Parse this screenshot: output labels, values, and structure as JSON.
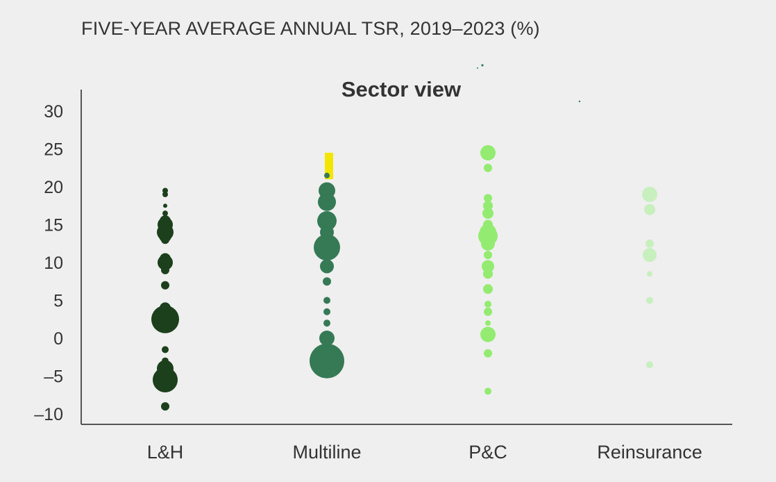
{
  "header": {
    "supertitle": "FIVE-YEAR AVERAGE ANNUAL TSR, 2019–2023 (%)"
  },
  "chart_data": {
    "type": "scatter",
    "title": "Sector view",
    "xlabel": "",
    "ylabel": "",
    "ylim": [
      -11,
      32
    ],
    "yticks": [
      30,
      25,
      20,
      15,
      10,
      5,
      0,
      -5,
      -10
    ],
    "ytick_labels": [
      "30",
      "25",
      "20",
      "15",
      "10",
      "5",
      "0",
      "–5",
      "–10"
    ],
    "categories": [
      "L&H",
      "Multiline",
      "P&C",
      "Reinsurance"
    ],
    "grid": false,
    "legend": "none",
    "highlight": {
      "category": "Multiline",
      "y_range": [
        21,
        24.5
      ],
      "color": "#f2e600"
    },
    "series": [
      {
        "category": "L&H",
        "color": "#1c3f1c",
        "points": [
          {
            "y": 19.5,
            "s": 4
          },
          {
            "y": 19.0,
            "s": 4
          },
          {
            "y": 17.5,
            "s": 3
          },
          {
            "y": 16.5,
            "s": 4
          },
          {
            "y": 15.5,
            "s": 8
          },
          {
            "y": 15.0,
            "s": 11
          },
          {
            "y": 14.0,
            "s": 12
          },
          {
            "y": 13.5,
            "s": 9
          },
          {
            "y": 13.0,
            "s": 6
          },
          {
            "y": 10.5,
            "s": 8
          },
          {
            "y": 10.0,
            "s": 11
          },
          {
            "y": 9.0,
            "s": 6
          },
          {
            "y": 7.0,
            "s": 6
          },
          {
            "y": 4.0,
            "s": 8
          },
          {
            "y": 2.5,
            "s": 20
          },
          {
            "y": -1.5,
            "s": 5
          },
          {
            "y": -3.0,
            "s": 5
          },
          {
            "y": -4.0,
            "s": 12
          },
          {
            "y": -5.5,
            "s": 18
          },
          {
            "y": -9.0,
            "s": 6
          }
        ]
      },
      {
        "category": "Multiline",
        "color": "#357a55",
        "points": [
          {
            "y": 21.5,
            "s": 4
          },
          {
            "y": 19.5,
            "s": 12
          },
          {
            "y": 18.0,
            "s": 13
          },
          {
            "y": 15.5,
            "s": 14
          },
          {
            "y": 14.0,
            "s": 10
          },
          {
            "y": 12.0,
            "s": 19
          },
          {
            "y": 9.5,
            "s": 10
          },
          {
            "y": 7.5,
            "s": 6
          },
          {
            "y": 5.0,
            "s": 5
          },
          {
            "y": 3.5,
            "s": 5
          },
          {
            "y": 2.0,
            "s": 5
          },
          {
            "y": 0.0,
            "s": 11
          },
          {
            "y": -3.0,
            "s": 25
          }
        ]
      },
      {
        "category": "P&C",
        "color": "#94eb71",
        "points": [
          {
            "y": 24.5,
            "s": 11
          },
          {
            "y": 22.5,
            "s": 6
          },
          {
            "y": 18.5,
            "s": 6
          },
          {
            "y": 17.5,
            "s": 7
          },
          {
            "y": 16.5,
            "s": 8
          },
          {
            "y": 15.0,
            "s": 7
          },
          {
            "y": 14.0,
            "s": 12
          },
          {
            "y": 13.5,
            "s": 14
          },
          {
            "y": 12.5,
            "s": 10
          },
          {
            "y": 11.0,
            "s": 6
          },
          {
            "y": 9.5,
            "s": 9
          },
          {
            "y": 8.5,
            "s": 7
          },
          {
            "y": 6.5,
            "s": 7
          },
          {
            "y": 4.5,
            "s": 5
          },
          {
            "y": 3.5,
            "s": 6
          },
          {
            "y": 2.0,
            "s": 4
          },
          {
            "y": 0.5,
            "s": 11
          },
          {
            "y": -2.0,
            "s": 6
          },
          {
            "y": -7.0,
            "s": 5
          }
        ]
      },
      {
        "category": "Reinsurance",
        "color": "#c8efbe",
        "points": [
          {
            "y": 19.0,
            "s": 11
          },
          {
            "y": 17.0,
            "s": 8
          },
          {
            "y": 12.5,
            "s": 6
          },
          {
            "y": 11.0,
            "s": 10
          },
          {
            "y": 8.5,
            "s": 4
          },
          {
            "y": 5.0,
            "s": 5
          },
          {
            "y": -3.5,
            "s": 5
          }
        ]
      }
    ]
  }
}
